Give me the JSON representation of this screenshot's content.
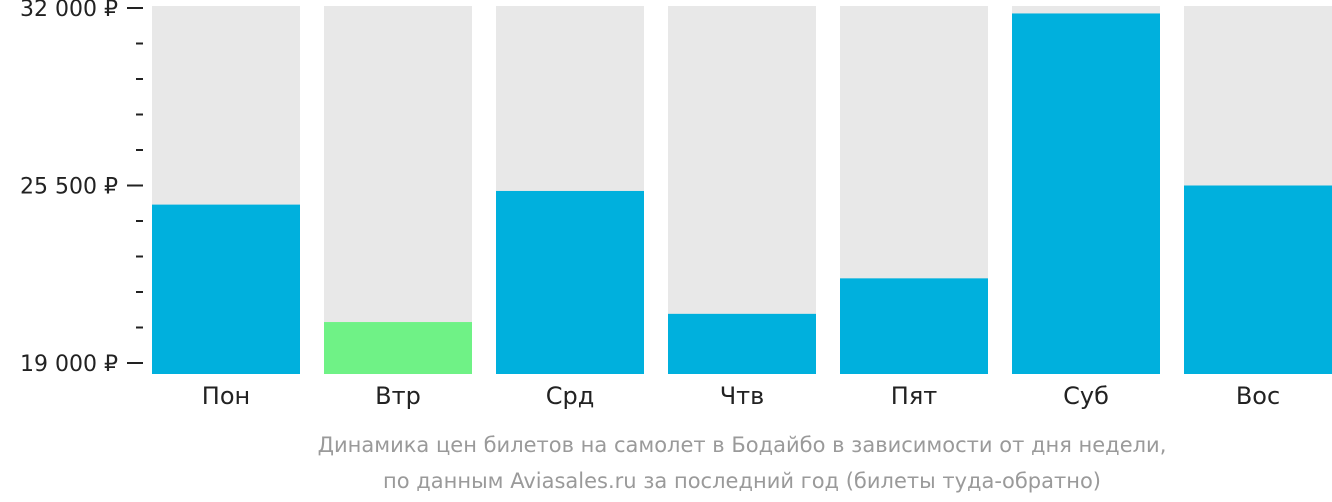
{
  "chart_data": {
    "type": "bar",
    "categories": [
      "Пон",
      "Втр",
      "Срд",
      "Чтв",
      "Пят",
      "Суб",
      "Вос"
    ],
    "values": [
      24800,
      20500,
      25300,
      20800,
      22100,
      31800,
      25500
    ],
    "ylim": [
      19000,
      32000
    ],
    "y_ticks": [
      {
        "value": 32000,
        "label": "32 000 ₽"
      },
      {
        "value": 25500,
        "label": "25 500 ₽"
      },
      {
        "value": 19000,
        "label": "19 000 ₽"
      }
    ],
    "minor_tick_step": 1300,
    "caption_lines": [
      "Динамика цен билетов на самолет в Бодайбо в зависимости от дня недели,",
      "по данным Aviasales.ru за последний год (билеты туда-обратно)"
    ],
    "colors": {
      "bar": "#00b0dd",
      "lowest_bar": "#6ff286",
      "track": "#e8e8e8",
      "axis": "#222222",
      "caption": "#9a9a9a"
    },
    "highlight_index": 1,
    "grid": false,
    "legend": "none"
  }
}
